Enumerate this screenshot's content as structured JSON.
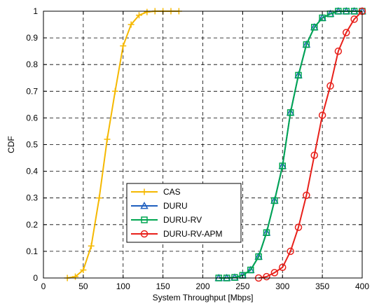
{
  "chart_data": {
    "type": "line",
    "xlabel": "System Throughput [Mbps]",
    "ylabel": "CDF",
    "xlim": [
      0,
      400
    ],
    "ylim": [
      0,
      1
    ],
    "xticks": [
      "0",
      "50",
      "100",
      "150",
      "200",
      "250",
      "300",
      "350",
      "400"
    ],
    "yticks": [
      "0",
      "0.1",
      "0.2",
      "0.3",
      "0.4",
      "0.5",
      "0.6",
      "0.7",
      "0.8",
      "0.9",
      "1"
    ],
    "grid": true,
    "legend_position": "lower-center",
    "series": [
      {
        "name": "CAS",
        "color": "#f5b800",
        "marker": "plus",
        "x": [
          30,
          40,
          50,
          60,
          70,
          80,
          90,
          100,
          110,
          120,
          130,
          140,
          150,
          160,
          170
        ],
        "y": [
          0,
          0.005,
          0.03,
          0.12,
          0.3,
          0.52,
          0.7,
          0.87,
          0.95,
          0.985,
          0.997,
          1,
          1,
          1,
          1
        ]
      },
      {
        "name": "DURU",
        "color": "#1f5fbf",
        "marker": "triangle",
        "x": [
          220,
          230,
          240,
          250,
          260,
          270,
          280,
          290,
          300,
          310,
          320,
          330,
          340,
          350,
          360,
          370,
          380,
          390,
          400
        ],
        "y": [
          0,
          0,
          0.002,
          0.01,
          0.03,
          0.08,
          0.17,
          0.29,
          0.42,
          0.62,
          0.76,
          0.875,
          0.94,
          0.975,
          0.99,
          1,
          1,
          1,
          1
        ]
      },
      {
        "name": "DURU-RV",
        "color": "#00a651",
        "marker": "square",
        "x": [
          220,
          230,
          240,
          250,
          260,
          270,
          280,
          290,
          300,
          310,
          320,
          330,
          340,
          350,
          360,
          370,
          380,
          390,
          400
        ],
        "y": [
          0,
          0,
          0.002,
          0.01,
          0.03,
          0.08,
          0.17,
          0.29,
          0.42,
          0.62,
          0.76,
          0.875,
          0.94,
          0.975,
          0.99,
          1,
          1,
          1,
          1
        ]
      },
      {
        "name": "DURU-RV-APM",
        "color": "#e8201a",
        "marker": "circle",
        "x": [
          270,
          280,
          290,
          300,
          310,
          320,
          330,
          340,
          350,
          360,
          370,
          380,
          390,
          400
        ],
        "y": [
          0,
          0.005,
          0.02,
          0.04,
          0.1,
          0.19,
          0.31,
          0.46,
          0.61,
          0.72,
          0.85,
          0.92,
          0.97,
          1
        ]
      }
    ]
  }
}
